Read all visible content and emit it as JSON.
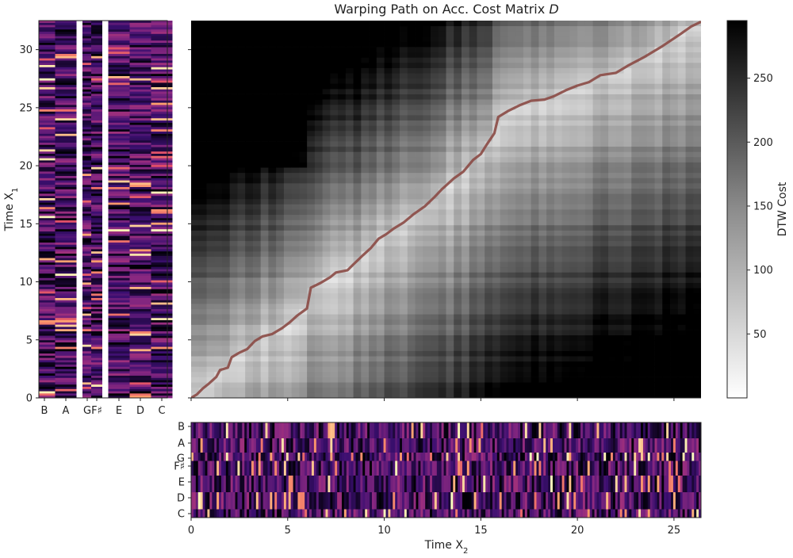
{
  "chart_data": [
    {
      "type": "heatmap",
      "panel": "chroma-x1",
      "xlabel": "",
      "ylabel": "Time X1",
      "ylabel_main": "Time X",
      "ylabel_sub": "1",
      "x_tick_labels": [
        "B",
        "A",
        "G",
        "F♯",
        "E",
        "D",
        "C"
      ],
      "y_ticks": [
        0,
        5,
        10,
        15,
        20,
        25,
        30
      ],
      "y_tick_labels": [
        "0",
        "5",
        "10",
        "15",
        "20",
        "25",
        "30"
      ],
      "ylim": [
        0,
        32.5
      ],
      "colormap": "magma",
      "accent_colors": {
        "high": "#fcfdbf",
        "mid": "#b73779",
        "low": "#000004"
      }
    },
    {
      "type": "heatmap",
      "panel": "acc-cost-matrix",
      "title": "Warping Path on Acc. Cost Matrix D",
      "title_main": "Warping Path on Acc. Cost Matrix ",
      "title_sym": "D",
      "xlim": [
        0,
        26.4
      ],
      "ylim": [
        0,
        32.5
      ],
      "x_ticks": [
        0,
        5,
        10,
        15,
        20,
        25
      ],
      "y_ticks": [
        0,
        5,
        10,
        15,
        20,
        25,
        30
      ],
      "colormap": "gray_r",
      "path_color": "#8b4a45",
      "warping_path": [
        [
          0,
          0
        ],
        [
          0.3,
          0.3
        ],
        [
          0.6,
          0.8
        ],
        [
          0.9,
          1.2
        ],
        [
          1.3,
          1.8
        ],
        [
          1.5,
          2.4
        ],
        [
          1.9,
          2.6
        ],
        [
          2.1,
          3.5
        ],
        [
          2.5,
          3.9
        ],
        [
          2.9,
          4.2
        ],
        [
          3.3,
          4.9
        ],
        [
          3.7,
          5.3
        ],
        [
          4.2,
          5.5
        ],
        [
          4.7,
          6.0
        ],
        [
          5.1,
          6.5
        ],
        [
          5.5,
          7.1
        ],
        [
          6.0,
          7.7
        ],
        [
          6.2,
          9.5
        ],
        [
          6.7,
          9.9
        ],
        [
          7.2,
          10.4
        ],
        [
          7.5,
          10.8
        ],
        [
          8.1,
          11.0
        ],
        [
          8.4,
          11.5
        ],
        [
          8.9,
          12.3
        ],
        [
          9.3,
          12.9
        ],
        [
          9.7,
          13.7
        ],
        [
          10.1,
          14.1
        ],
        [
          10.5,
          14.6
        ],
        [
          11.0,
          15.1
        ],
        [
          11.5,
          15.8
        ],
        [
          12.1,
          16.5
        ],
        [
          12.6,
          17.3
        ],
        [
          13.0,
          18.0
        ],
        [
          13.6,
          18.9
        ],
        [
          14.1,
          19.5
        ],
        [
          14.6,
          20.5
        ],
        [
          15.0,
          21.0
        ],
        [
          15.3,
          21.8
        ],
        [
          15.7,
          22.8
        ],
        [
          15.9,
          24.2
        ],
        [
          16.4,
          24.7
        ],
        [
          17.0,
          25.2
        ],
        [
          17.6,
          25.6
        ],
        [
          18.3,
          25.7
        ],
        [
          18.8,
          26.0
        ],
        [
          19.4,
          26.5
        ],
        [
          20.0,
          26.9
        ],
        [
          20.6,
          27.2
        ],
        [
          21.2,
          27.8
        ],
        [
          22.0,
          28.0
        ],
        [
          22.6,
          28.6
        ],
        [
          23.5,
          29.4
        ],
        [
          24.4,
          30.3
        ],
        [
          25.3,
          31.3
        ],
        [
          25.9,
          32.0
        ],
        [
          26.4,
          32.4
        ]
      ]
    },
    {
      "type": "heatmap",
      "panel": "chroma-x2",
      "xlabel": "Time X2",
      "xlabel_main": "Time X",
      "xlabel_sub": "2",
      "x_ticks": [
        0,
        5,
        10,
        15,
        20,
        25
      ],
      "x_tick_labels": [
        "0",
        "5",
        "10",
        "15",
        "20",
        "25"
      ],
      "y_tick_labels": [
        "B",
        "A",
        "G",
        "F♯",
        "E",
        "D",
        "C"
      ],
      "xlim": [
        0,
        26.4
      ],
      "colormap": "magma"
    },
    {
      "type": "colorbar",
      "panel": "colorbar",
      "label": "DTW Cost",
      "ticks": [
        50,
        100,
        150,
        200,
        250
      ],
      "tick_labels": [
        "50",
        "100",
        "150",
        "200",
        "250"
      ],
      "range": [
        0,
        295
      ]
    }
  ]
}
